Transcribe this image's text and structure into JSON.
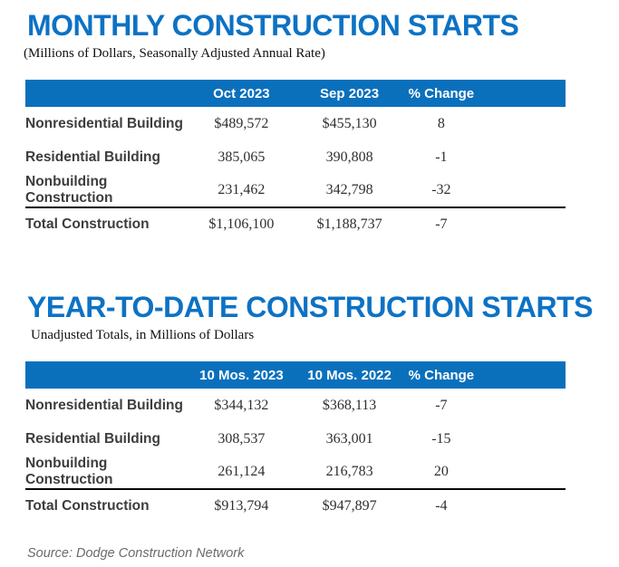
{
  "colors": {
    "title_blue": "#0d72c4",
    "header_bar_blue": "#0b70bc",
    "label_gray": "#3d3d3d",
    "source_gray": "#6b6b6b"
  },
  "sections": [
    {
      "title": "MONTHLY CONSTRUCTION STARTS",
      "subtitle": "(Millions of Dollars, Seasonally Adjusted Annual Rate)",
      "table": {
        "columns": [
          "Oct 2023",
          "Sep 2023",
          "% Change"
        ],
        "rows": [
          {
            "label": "Nonresidential Building",
            "col1": "$489,572",
            "col2": "$455,130",
            "change": "8"
          },
          {
            "label": "Residential Building",
            "col1": "385,065",
            "col2": "390,808",
            "change": "-1"
          },
          {
            "label": "Nonbuilding Construction",
            "col1": "231,462",
            "col2": "342,798",
            "change": "-32"
          },
          {
            "label": "Total Construction",
            "col1": "$1,106,100",
            "col2": "$1,188,737",
            "change": "-7"
          }
        ]
      }
    },
    {
      "title": "YEAR-TO-DATE CONSTRUCTION STARTS",
      "subtitle": "Unadjusted Totals, in Millions of Dollars",
      "table": {
        "columns": [
          "10 Mos. 2023",
          "10 Mos. 2022",
          "% Change"
        ],
        "rows": [
          {
            "label": "Nonresidential Building",
            "col1": "$344,132",
            "col2": "$368,113",
            "change": "-7"
          },
          {
            "label": "Residential Building",
            "col1": "308,537",
            "col2": "363,001",
            "change": "-15"
          },
          {
            "label": "Nonbuilding Construction",
            "col1": "261,124",
            "col2": "216,783",
            "change": "20"
          },
          {
            "label": "Total Construction",
            "col1": "$913,794",
            "col2": "$947,897",
            "change": "-4"
          }
        ]
      }
    }
  ],
  "footer": {
    "source_note": "Source: Dodge Construction Network"
  }
}
